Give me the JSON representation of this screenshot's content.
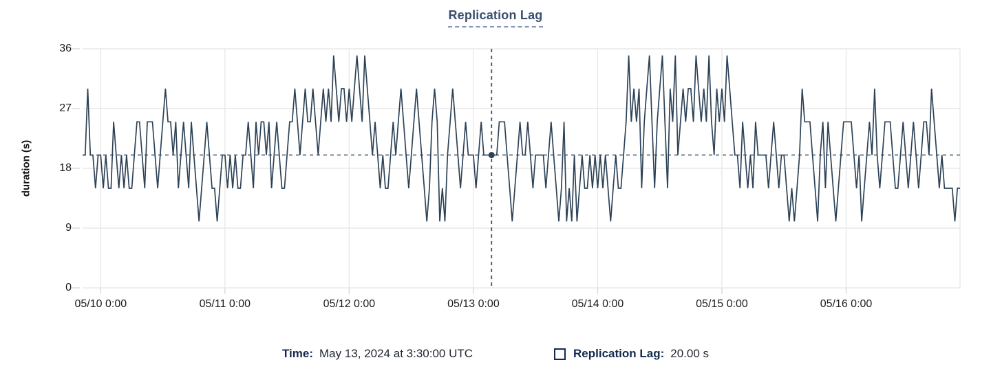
{
  "title": "Replication Lag",
  "y_axis": {
    "label": "duration (s)"
  },
  "tooltip": {
    "time_label": "Time:",
    "time_value": "May 13, 2024 at 3:30:00 UTC",
    "series_label": "Replication Lag:",
    "series_value": "20.00 s"
  },
  "colors": {
    "line": "#2d4257",
    "crosshair": "#3a586b",
    "hover_dot": "#2d4257",
    "grid": "#e8e8e8",
    "tick_mark": "#d9d9d9",
    "title": "#3a4f6f",
    "legend_label": "#14294d"
  },
  "chart_data": {
    "type": "line",
    "title": "Replication Lag",
    "ylabel": "duration (s)",
    "ylim": [
      0,
      36
    ],
    "y_ticks": [
      0,
      9,
      18,
      27,
      36
    ],
    "x_unit": "hours since 2024-05-10 00:00 UTC",
    "x_range_hours": [
      -3.5,
      166
    ],
    "x_tick_hours": [
      0,
      24,
      48,
      72,
      96,
      120,
      144
    ],
    "x_tick_labels": [
      "05/10 0:00",
      "05/11 0:00",
      "05/12 0:00",
      "05/13 0:00",
      "05/14 0:00",
      "05/15 0:00",
      "05/16 0:00"
    ],
    "grid": true,
    "legend_position": "bottom",
    "sample_interval_hours": 0.5,
    "x_start_hours": -3.5,
    "crosshair": {
      "x_hours": 75.5,
      "y_value": 20,
      "time_text": "May 13, 2024 at 3:30:00 UTC",
      "value_text": "20.00 s"
    },
    "series": [
      {
        "name": "Replication Lag",
        "values": [
          20,
          20,
          30,
          20,
          20,
          15,
          20,
          20,
          15,
          20,
          15,
          15,
          25,
          20,
          15,
          20,
          15,
          20,
          15,
          15,
          20,
          25,
          25,
          20,
          15,
          25,
          25,
          25,
          20,
          15,
          20,
          25,
          30,
          25,
          25,
          20,
          25,
          15,
          20,
          25,
          20,
          15,
          25,
          20,
          15,
          10,
          15,
          20,
          25,
          20,
          15,
          15,
          10,
          15,
          20,
          20,
          15,
          20,
          15,
          20,
          15,
          15,
          20,
          20,
          25,
          20,
          15,
          25,
          20,
          25,
          25,
          20,
          25,
          15,
          20,
          25,
          20,
          15,
          15,
          20,
          25,
          25,
          30,
          25,
          20,
          25,
          30,
          25,
          25,
          30,
          25,
          20,
          25,
          30,
          25,
          30,
          25,
          35,
          30,
          25,
          30,
          30,
          25,
          30,
          25,
          30,
          35,
          30,
          25,
          35,
          30,
          25,
          20,
          25,
          20,
          15,
          20,
          15,
          15,
          20,
          25,
          20,
          25,
          30,
          25,
          20,
          15,
          20,
          25,
          30,
          25,
          20,
          15,
          10,
          15,
          25,
          30,
          25,
          10,
          15,
          10,
          20,
          25,
          30,
          25,
          20,
          15,
          20,
          25,
          20,
          20,
          20,
          15,
          20,
          25,
          20,
          20,
          20,
          20,
          20,
          20,
          25,
          25,
          25,
          20,
          15,
          10,
          15,
          20,
          25,
          20,
          20,
          25,
          20,
          15,
          20,
          20,
          20,
          20,
          15,
          20,
          25,
          20,
          15,
          10,
          15,
          25,
          10,
          15,
          10,
          20,
          10,
          15,
          20,
          15,
          15,
          20,
          15,
          20,
          15,
          20,
          15,
          20,
          15,
          10,
          15,
          20,
          15,
          15,
          20,
          25,
          35,
          25,
          30,
          25,
          30,
          15,
          25,
          30,
          35,
          25,
          15,
          25,
          30,
          35,
          25,
          15,
          30,
          25,
          35,
          20,
          25,
          30,
          25,
          30,
          30,
          25,
          35,
          30,
          25,
          30,
          25,
          35,
          25,
          20,
          30,
          25,
          30,
          25,
          35,
          30,
          25,
          20,
          20,
          15,
          25,
          20,
          15,
          20,
          15,
          25,
          20,
          20,
          20,
          20,
          15,
          20,
          25,
          20,
          15,
          20,
          20,
          15,
          10,
          15,
          10,
          15,
          20,
          30,
          25,
          25,
          25,
          20,
          15,
          10,
          20,
          25,
          15,
          25,
          20,
          15,
          10,
          15,
          20,
          25,
          25,
          25,
          25,
          20,
          15,
          20,
          10,
          15,
          20,
          25,
          20,
          30,
          20,
          15,
          20,
          25,
          25,
          25,
          20,
          15,
          15,
          20,
          25,
          20,
          15,
          20,
          25,
          20,
          15,
          20,
          25,
          25,
          20,
          30,
          25,
          20,
          15,
          20,
          15,
          15,
          15,
          15,
          10,
          15,
          15
        ]
      }
    ]
  }
}
